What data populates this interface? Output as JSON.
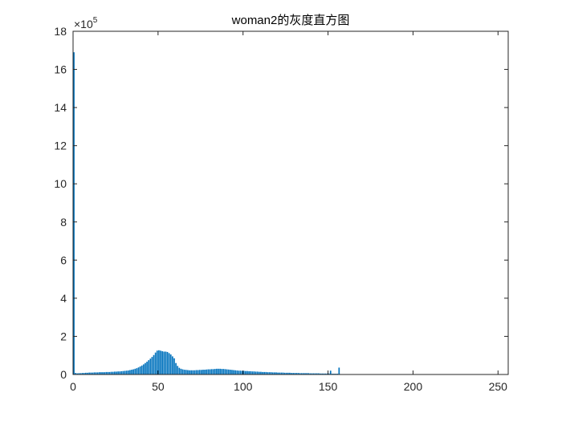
{
  "chart_data": {
    "type": "bar",
    "title": "woman2的灰度直方图",
    "xlabel": "",
    "ylabel": "",
    "xlim": [
      0,
      256
    ],
    "ylim": [
      0,
      18
    ],
    "y_exponent_label": "×10",
    "y_exponent_power": "5",
    "x_ticks": [
      0,
      50,
      100,
      150,
      200,
      250
    ],
    "y_ticks": [
      0,
      2,
      4,
      6,
      8,
      10,
      12,
      14,
      16,
      18
    ],
    "x_tick_labels": [
      "0",
      "50",
      "100",
      "150",
      "200",
      "250"
    ],
    "y_tick_labels": [
      "0",
      "2",
      "4",
      "6",
      "8",
      "10",
      "12",
      "14",
      "16",
      "18"
    ],
    "bar_color": "#0072BD",
    "grid": false,
    "x": [
      0,
      1,
      2,
      3,
      4,
      5,
      6,
      7,
      8,
      9,
      10,
      11,
      12,
      13,
      14,
      15,
      16,
      17,
      18,
      19,
      20,
      21,
      22,
      23,
      24,
      25,
      26,
      27,
      28,
      29,
      30,
      31,
      32,
      33,
      34,
      35,
      36,
      37,
      38,
      39,
      40,
      41,
      42,
      43,
      44,
      45,
      46,
      47,
      48,
      49,
      50,
      51,
      52,
      53,
      54,
      55,
      56,
      57,
      58,
      59,
      60,
      61,
      62,
      63,
      64,
      65,
      66,
      67,
      68,
      69,
      70,
      71,
      72,
      73,
      74,
      75,
      76,
      77,
      78,
      79,
      80,
      81,
      82,
      83,
      84,
      85,
      86,
      87,
      88,
      89,
      90,
      91,
      92,
      93,
      94,
      95,
      96,
      97,
      98,
      99,
      100,
      101,
      102,
      103,
      104,
      105,
      106,
      107,
      108,
      109,
      110,
      111,
      112,
      113,
      114,
      115,
      116,
      117,
      118,
      119,
      120,
      121,
      122,
      123,
      124,
      125,
      126,
      127,
      128,
      129,
      130,
      131,
      132,
      133,
      134,
      135,
      136,
      137,
      138,
      139,
      140,
      141,
      142,
      143,
      144,
      145,
      146,
      147,
      148,
      149,
      150,
      151,
      152,
      153,
      154,
      155,
      156
    ],
    "values": [
      16.9,
      0.08,
      0.06,
      0.07,
      0.07,
      0.08,
      0.08,
      0.09,
      0.09,
      0.1,
      0.1,
      0.1,
      0.11,
      0.11,
      0.11,
      0.12,
      0.12,
      0.12,
      0.12,
      0.13,
      0.13,
      0.13,
      0.14,
      0.14,
      0.15,
      0.15,
      0.16,
      0.16,
      0.17,
      0.18,
      0.19,
      0.2,
      0.21,
      0.23,
      0.25,
      0.27,
      0.3,
      0.33,
      0.37,
      0.42,
      0.47,
      0.53,
      0.6,
      0.67,
      0.75,
      0.83,
      0.92,
      1.02,
      1.15,
      1.25,
      1.27,
      1.25,
      1.22,
      1.2,
      1.2,
      1.18,
      1.12,
      1.05,
      0.95,
      0.85,
      0.6,
      0.45,
      0.35,
      0.3,
      0.27,
      0.25,
      0.24,
      0.23,
      0.22,
      0.22,
      0.22,
      0.22,
      0.23,
      0.23,
      0.24,
      0.24,
      0.25,
      0.25,
      0.26,
      0.27,
      0.27,
      0.28,
      0.28,
      0.29,
      0.3,
      0.3,
      0.3,
      0.29,
      0.29,
      0.28,
      0.27,
      0.26,
      0.25,
      0.24,
      0.23,
      0.22,
      0.21,
      0.2,
      0.2,
      0.19,
      0.19,
      0.18,
      0.18,
      0.17,
      0.17,
      0.16,
      0.16,
      0.15,
      0.15,
      0.14,
      0.14,
      0.13,
      0.13,
      0.13,
      0.12,
      0.12,
      0.12,
      0.11,
      0.11,
      0.11,
      0.1,
      0.1,
      0.1,
      0.1,
      0.09,
      0.09,
      0.09,
      0.09,
      0.08,
      0.08,
      0.08,
      0.08,
      0.08,
      0.07,
      0.07,
      0.07,
      0.07,
      0.07,
      0.07,
      0.06,
      0.06,
      0.06,
      0.06,
      0.06,
      0.06,
      0.05,
      0.05,
      0.05,
      0.05,
      0.05,
      0.05,
      0.2,
      0.04,
      0.04,
      0.04,
      0.04,
      0.36
    ]
  }
}
